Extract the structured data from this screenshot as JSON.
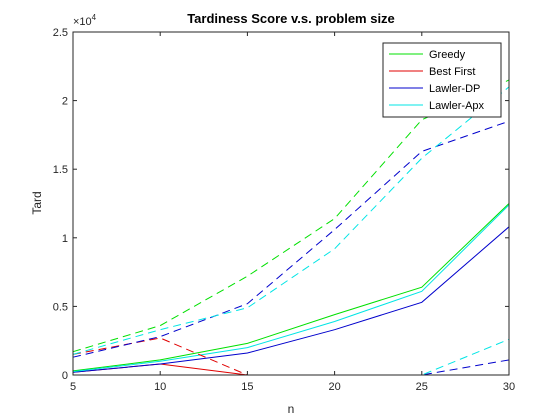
{
  "chart_data": {
    "type": "line",
    "title": "Tardiness Score v.s. problem size",
    "xlabel": "n",
    "ylabel": "Tard",
    "x": [
      5,
      10,
      15,
      20,
      25,
      30
    ],
    "xlim": [
      5,
      30
    ],
    "ylim": [
      0,
      25000
    ],
    "y_exponent_label": "×10",
    "y_exponent_power": "4",
    "xticks": [
      "5",
      "10",
      "15",
      "20",
      "25",
      "30"
    ],
    "yticks": [
      "0",
      "0.5",
      "1",
      "1.5",
      "2",
      "2.5"
    ],
    "ytick_values": [
      0,
      5000,
      10000,
      15000,
      20000,
      25000
    ],
    "grid": false,
    "legend_location": "top-right",
    "series": [
      {
        "name": "Greedy",
        "color": "#00e000",
        "style": "solid",
        "legend": true,
        "values": [
          300,
          1100,
          2300,
          4400,
          6400,
          12500
        ]
      },
      {
        "name": "Best First",
        "color": "#e00000",
        "style": "solid",
        "legend": true,
        "values": [
          200,
          800,
          0,
          0,
          0,
          0
        ]
      },
      {
        "name": "Lawler-DP",
        "color": "#0000cc",
        "style": "solid",
        "legend": true,
        "values": [
          200,
          800,
          1600,
          3300,
          5300,
          10800
        ]
      },
      {
        "name": "Lawler-Apx",
        "color": "#00e5e5",
        "style": "solid",
        "legend": true,
        "values": [
          250,
          1000,
          2000,
          3900,
          6100,
          12400
        ]
      },
      {
        "name": "",
        "color": "#00e000",
        "style": "dashed",
        "legend": false,
        "values": [
          1700,
          3600,
          7200,
          11400,
          18600,
          21500
        ]
      },
      {
        "name": "",
        "color": "#e00000",
        "style": "dashed",
        "legend": false,
        "values": [
          1500,
          2700,
          0,
          0,
          0,
          0
        ]
      },
      {
        "name": "",
        "color": "#0000cc",
        "style": "dashed",
        "legend": false,
        "values": [
          1300,
          2800,
          5200,
          10600,
          16300,
          18500
        ]
      },
      {
        "name": "",
        "color": "#00e5e5",
        "style": "dashed",
        "legend": false,
        "values": [
          1500,
          3300,
          4900,
          9200,
          15800,
          21000
        ]
      },
      {
        "name": "",
        "color": "#0000cc",
        "style": "dashed",
        "legend": false,
        "values": [
          0,
          0,
          0,
          0,
          0,
          1100
        ]
      },
      {
        "name": "",
        "color": "#00e5e5",
        "style": "dashed",
        "legend": false,
        "values": [
          0,
          0,
          0,
          0,
          0,
          2600
        ]
      }
    ]
  }
}
